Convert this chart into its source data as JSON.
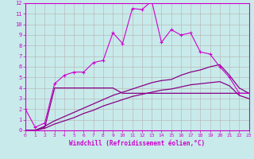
{
  "bg_color": "#c8eaea",
  "grid_color": "#bbbbbb",
  "line_color": "#cc00cc",
  "dark_line_color": "#880088",
  "xlabel": "Windchill (Refroidissement éolien,°C)",
  "xlim": [
    0,
    23
  ],
  "ylim": [
    0,
    12
  ],
  "xticks": [
    0,
    1,
    2,
    3,
    4,
    5,
    6,
    7,
    8,
    9,
    10,
    11,
    12,
    13,
    14,
    15,
    16,
    17,
    18,
    19,
    20,
    21,
    22,
    23
  ],
  "yticks": [
    0,
    1,
    2,
    3,
    4,
    5,
    6,
    7,
    8,
    9,
    10,
    11,
    12
  ],
  "line1_x": [
    0,
    1,
    2,
    3,
    4,
    5,
    6,
    7,
    8,
    9,
    10,
    11,
    12,
    13,
    14,
    15,
    16,
    17,
    18,
    19,
    20,
    21,
    22,
    23
  ],
  "line1_y": [
    2.0,
    0.3,
    0.7,
    4.4,
    5.2,
    5.5,
    5.5,
    6.4,
    6.6,
    9.2,
    8.2,
    11.5,
    11.4,
    12.2,
    8.3,
    9.5,
    9.0,
    9.2,
    7.4,
    7.2,
    6.0,
    5.0,
    3.5,
    3.5
  ],
  "line2_x": [
    0,
    1,
    2,
    3,
    4,
    5,
    6,
    7,
    8,
    9,
    10,
    11,
    12,
    13,
    14,
    15,
    16,
    17,
    18,
    19,
    20,
    21,
    22,
    23
  ],
  "line2_y": [
    0.0,
    0.0,
    0.3,
    4.0,
    4.0,
    4.0,
    4.0,
    4.0,
    4.0,
    4.0,
    3.5,
    3.5,
    3.5,
    3.5,
    3.5,
    3.5,
    3.5,
    3.5,
    3.5,
    3.5,
    3.5,
    3.5,
    3.5,
    3.5
  ],
  "line3_x": [
    0,
    1,
    2,
    3,
    4,
    5,
    6,
    7,
    8,
    9,
    10,
    11,
    12,
    13,
    14,
    15,
    16,
    17,
    18,
    19,
    20,
    21,
    22,
    23
  ],
  "line3_y": [
    0.0,
    0.0,
    0.4,
    0.9,
    1.3,
    1.7,
    2.1,
    2.5,
    2.9,
    3.3,
    3.6,
    3.9,
    4.2,
    4.5,
    4.7,
    4.8,
    5.2,
    5.5,
    5.7,
    6.0,
    6.2,
    5.2,
    4.0,
    3.5
  ],
  "line4_x": [
    0,
    1,
    2,
    3,
    4,
    5,
    6,
    7,
    8,
    9,
    10,
    11,
    12,
    13,
    14,
    15,
    16,
    17,
    18,
    19,
    20,
    21,
    22,
    23
  ],
  "line4_y": [
    0.0,
    0.0,
    0.2,
    0.6,
    0.9,
    1.2,
    1.6,
    1.9,
    2.3,
    2.6,
    2.9,
    3.2,
    3.4,
    3.6,
    3.8,
    3.9,
    4.1,
    4.3,
    4.4,
    4.5,
    4.6,
    4.2,
    3.3,
    3.0
  ]
}
